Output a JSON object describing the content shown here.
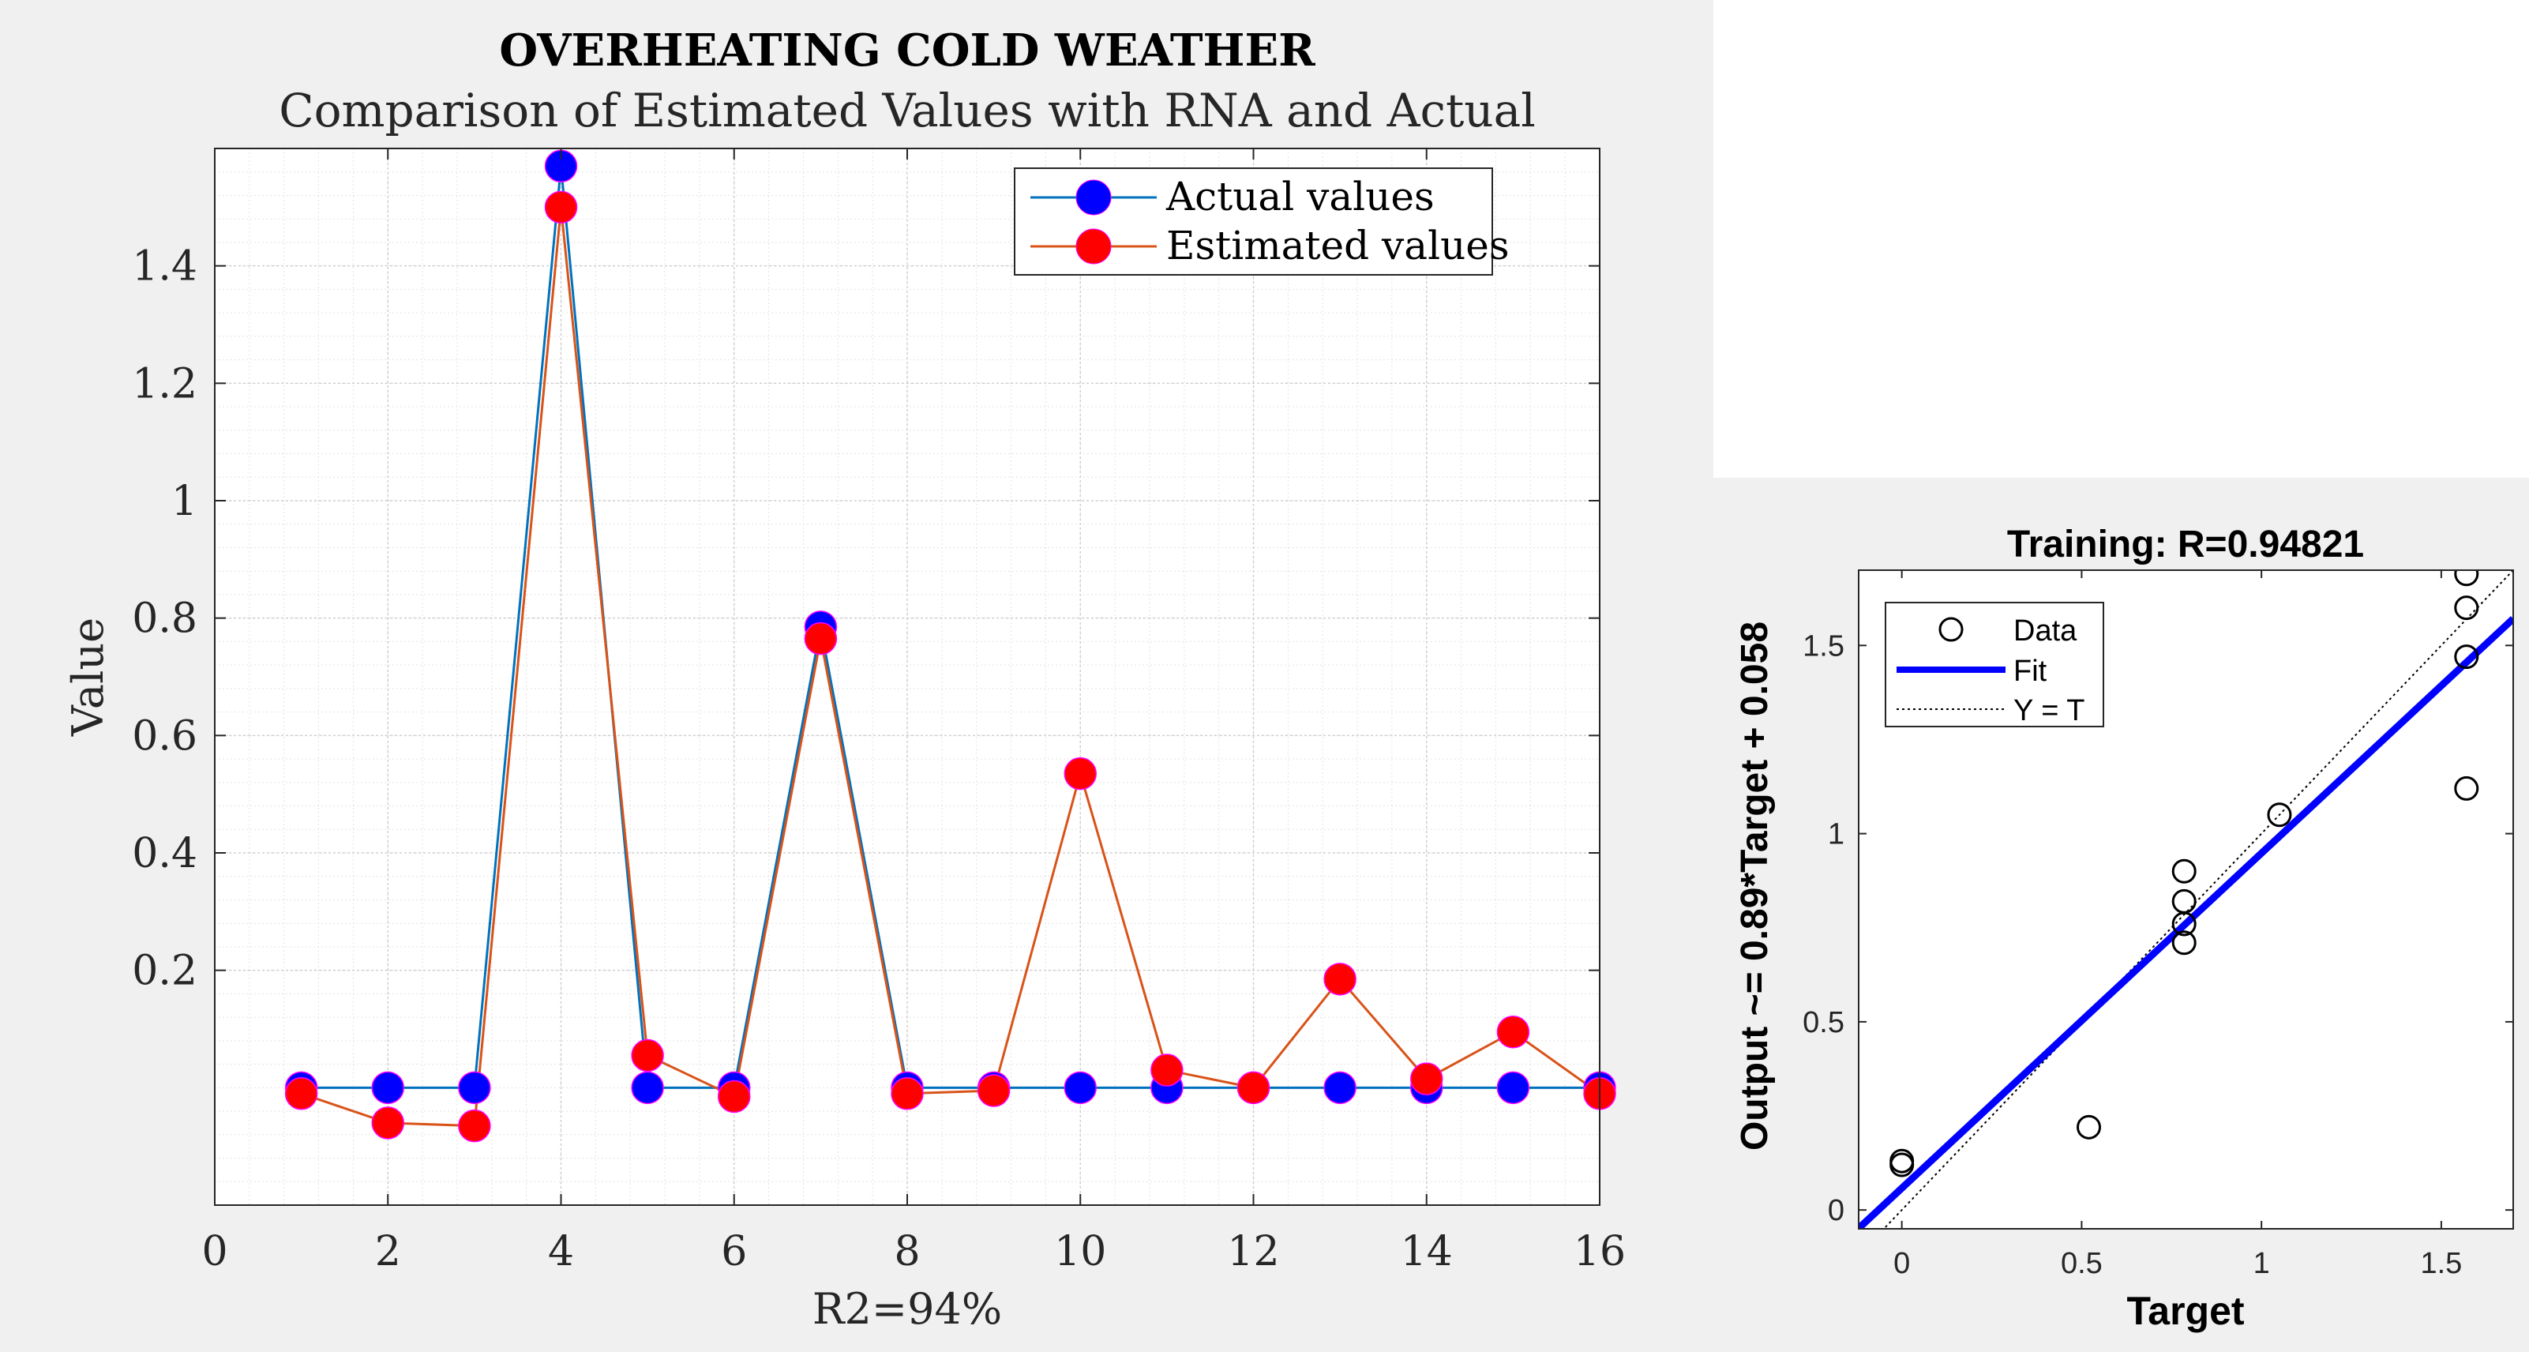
{
  "chart_data": [
    {
      "type": "line",
      "title": "OVERHEATING COLD WEATHER",
      "subtitle": "Comparison of Estimated Values with RNA and Actual",
      "xlabel": "R2=94%",
      "ylabel": "Value",
      "xlim": [
        0,
        16
      ],
      "ylim": [
        -0.2,
        1.6
      ],
      "xticks": [
        0,
        2,
        4,
        6,
        8,
        10,
        12,
        14,
        16
      ],
      "yticks": [
        0.2,
        0.4,
        0.6,
        0.8,
        1,
        1.2,
        1.4
      ],
      "ytick_labels": [
        "0.2",
        "0.4",
        "0.6",
        "0.8",
        "1",
        "1.2",
        "1.4"
      ],
      "grid": true,
      "minor_grid": true,
      "legend_position": "top-right",
      "x": [
        1,
        2,
        3,
        4,
        5,
        6,
        7,
        8,
        9,
        10,
        11,
        12,
        13,
        14,
        15,
        16
      ],
      "series": [
        {
          "name": "Actual values",
          "color": "#0072BD",
          "marker_color": "#0000FF",
          "values": [
            0,
            0,
            0,
            1.57,
            0,
            0,
            0.785,
            0,
            0,
            0,
            0,
            0,
            0,
            0,
            0,
            0
          ]
        },
        {
          "name": "Estimated values",
          "color": "#D95319",
          "marker_color": "#FF0000",
          "values": [
            -0.01,
            -0.06,
            -0.065,
            1.5,
            0.055,
            -0.015,
            0.765,
            -0.01,
            -0.005,
            0.535,
            0.03,
            0,
            0.185,
            0.015,
            0.095,
            -0.01
          ]
        }
      ]
    },
    {
      "type": "scatter",
      "title": "Training: R=0.94821",
      "xlabel": "Target",
      "ylabel": "Output ~= 0.89*Target + 0.058",
      "xlim": [
        -0.12,
        1.7
      ],
      "ylim": [
        -0.05,
        1.7
      ],
      "xticks": [
        0,
        0.5,
        1,
        1.5
      ],
      "yticks": [
        0,
        0.5,
        1,
        1.5
      ],
      "xtick_labels": [
        "0",
        "0.5",
        "1",
        "1.5"
      ],
      "ytick_labels": [
        "0",
        "0.5",
        "1",
        "1.5"
      ],
      "legend_position": "top-left",
      "legend": [
        "Data",
        "Fit",
        "Y = T"
      ],
      "fit": {
        "slope": 0.89,
        "intercept": 0.058,
        "color": "#0000FF"
      },
      "points": [
        {
          "x": 0,
          "y": 0.13
        },
        {
          "x": 0,
          "y": 0.12
        },
        {
          "x": 0.52,
          "y": 0.22
        },
        {
          "x": 0.785,
          "y": 0.9
        },
        {
          "x": 0.785,
          "y": 0.82
        },
        {
          "x": 0.785,
          "y": 0.76
        },
        {
          "x": 0.785,
          "y": 0.71
        },
        {
          "x": 1.05,
          "y": 1.05
        },
        {
          "x": 1.57,
          "y": 1.69
        },
        {
          "x": 1.57,
          "y": 1.6
        },
        {
          "x": 1.57,
          "y": 1.47
        },
        {
          "x": 1.57,
          "y": 1.12
        }
      ]
    }
  ]
}
